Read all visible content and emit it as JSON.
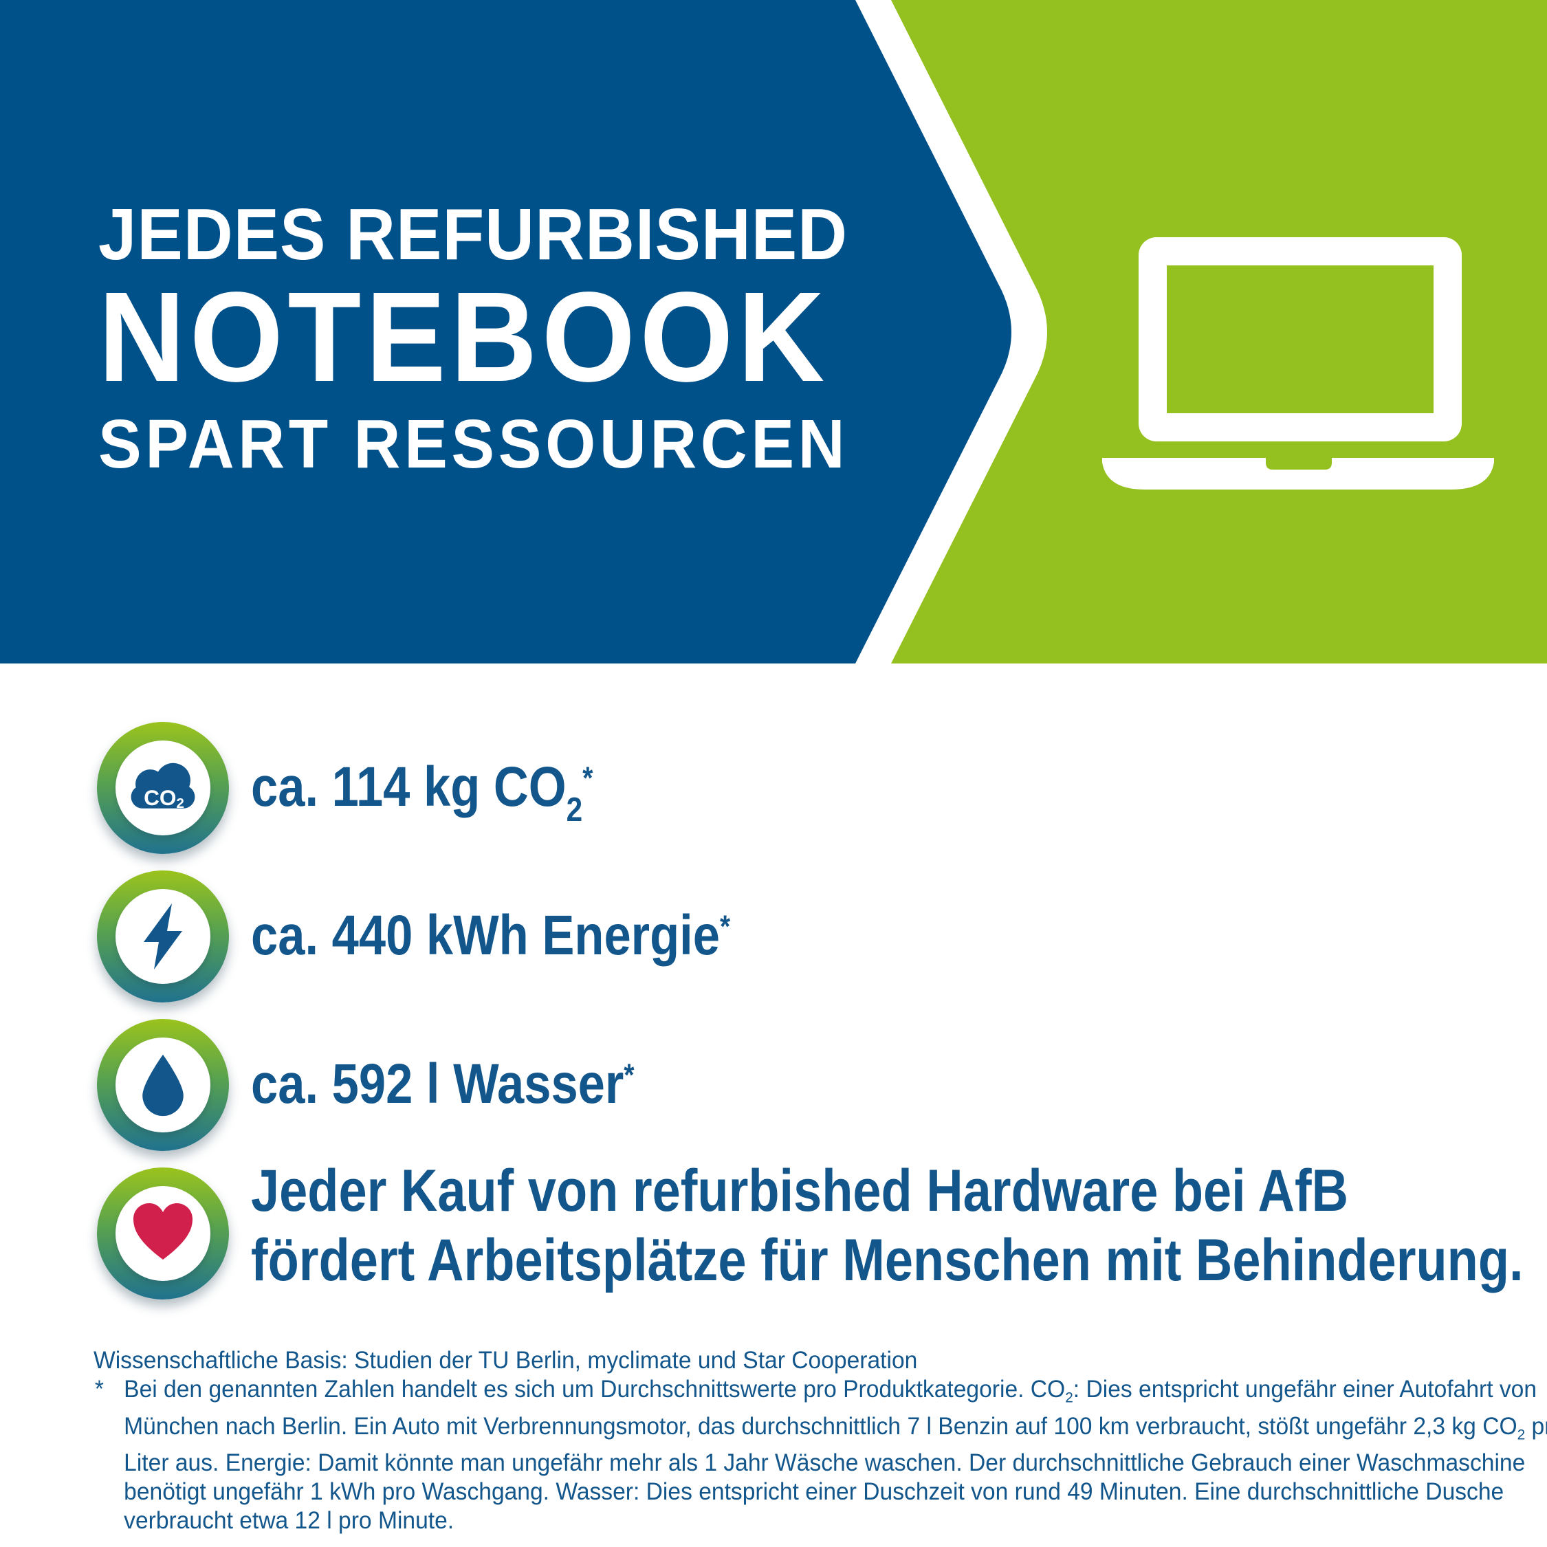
{
  "colors": {
    "banner_blue": "#005089",
    "banner_green": "#94c11f",
    "text_blue": "#12568c",
    "heart_red": "#d2204c",
    "ring_gradient": [
      "#9ac31c",
      "#57a150",
      "#20728e"
    ],
    "white": "#ffffff"
  },
  "banner": {
    "title_line1": "JEDES REFURBISHED",
    "title_line2": "NOTEBOOK",
    "title_line3": "SPART RESSOURCEN",
    "icon": "laptop-icon"
  },
  "stats": [
    {
      "icon": "co2-cloud-icon",
      "icon_label": "CO",
      "icon_label_sub": "2",
      "segments": [
        {
          "t": "ca. 114 kg CO"
        },
        {
          "sub": "2"
        },
        {
          "sup": "*"
        }
      ]
    },
    {
      "icon": "lightning-icon",
      "segments": [
        {
          "t": "ca. 440 kWh Energie"
        },
        {
          "sup": "*"
        }
      ]
    },
    {
      "icon": "water-drop-icon",
      "segments": [
        {
          "t": "ca. 592 l Wasser"
        },
        {
          "sup": "*"
        }
      ]
    },
    {
      "icon": "heart-icon",
      "lines": [
        "Jeder Kauf von refurbished Hardware bei AfB",
        "fördert Arbeitsplätze für Menschen mit Behinderung."
      ]
    }
  ],
  "footnote": {
    "line1": "Wissenschaftliche Basis: Studien der TU Berlin, myclimate und Star Cooperation",
    "marker": "*",
    "body_lines": [
      [
        {
          "t": "Bei den genannten Zahlen handelt es sich um Durchschnittswerte pro Produktkategorie. CO"
        },
        {
          "sub": "2"
        },
        {
          "t": ": Dies entspricht ungefähr einer Autofahrt von"
        }
      ],
      [
        {
          "t": "München nach Berlin. Ein Auto mit Verbrennungsmotor, das durchschnittlich 7 l Benzin auf 100 km verbraucht, stößt ungefähr 2,3 kg CO"
        },
        {
          "sub": "2"
        },
        {
          "t": " pro"
        }
      ],
      [
        {
          "t": "Liter aus. Energie: Damit könnte man ungefähr mehr als 1 Jahr Wäsche waschen. Der durchschnittliche Gebrauch einer Waschmaschine"
        }
      ],
      [
        {
          "t": "benötigt ungefähr 1 kWh pro Waschgang. Wasser: Dies entspricht einer Duschzeit von rund 49 Minuten. Eine durchschnittliche Dusche"
        }
      ],
      [
        {
          "t": "verbraucht etwa 12 l pro Minute."
        }
      ]
    ]
  }
}
